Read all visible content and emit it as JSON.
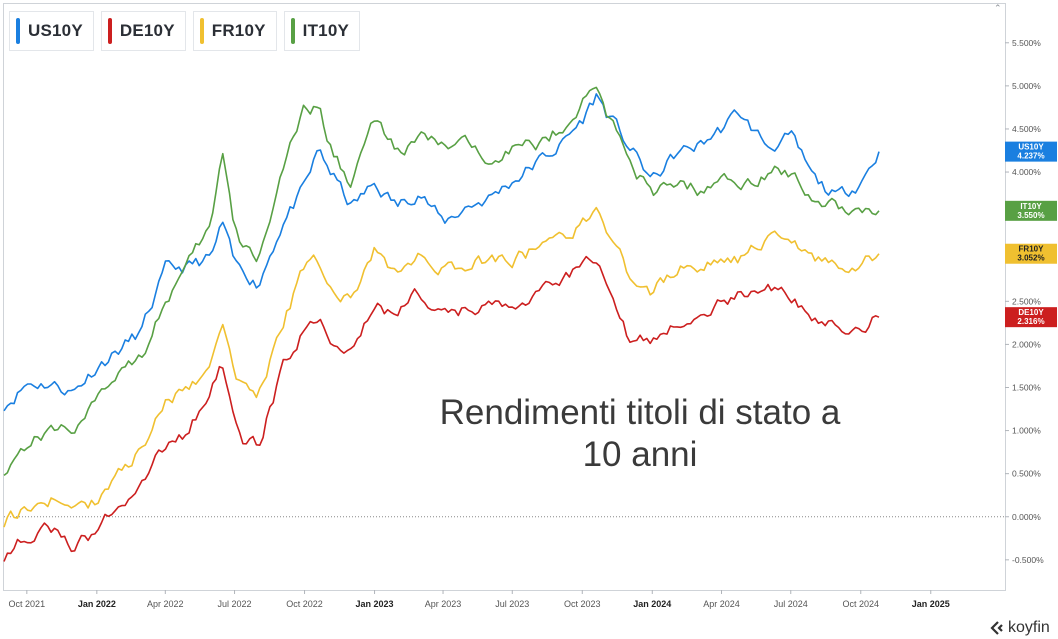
{
  "legend": {
    "items": [
      {
        "label": "US10Y",
        "color": "#1a7fe0"
      },
      {
        "label": "DE10Y",
        "color": "#cc1f1f"
      },
      {
        "label": "FR10Y",
        "color": "#f0c030"
      },
      {
        "label": "IT10Y",
        "color": "#58a044"
      }
    ]
  },
  "overlay_text": {
    "line1": "Rendimenti titoli di stato a",
    "line2": "10 anni"
  },
  "brand": {
    "name": "koyfin"
  },
  "chart_data": {
    "type": "line",
    "x_ticks": [
      "Oct 2021",
      "Jan 2022",
      "Apr 2022",
      "Jul 2022",
      "Oct 2022",
      "Jan 2023",
      "Apr 2023",
      "Jul 2023",
      "Oct 2023",
      "Jan 2024",
      "Apr 2024",
      "Jul 2024",
      "Oct 2024",
      "Jan 2025"
    ],
    "x_ticks_bold": [
      "Jan 2022",
      "Jan 2023",
      "Jan 2024",
      "Jan 2025"
    ],
    "y_ticks": [
      "-0.500%",
      "0.000%",
      "0.500%",
      "1.000%",
      "1.500%",
      "2.000%",
      "2.500%",
      "3.000%",
      "3.500%",
      "4.000%",
      "4.500%",
      "5.000%",
      "5.500%"
    ],
    "ylim": [
      -0.85,
      5.95
    ],
    "xlim": [
      "2021-09-01",
      "2025-02-15"
    ],
    "zero_line": "dotted",
    "x": [
      "2021-09-01",
      "2021-10-01",
      "2021-11-01",
      "2021-12-01",
      "2022-01-01",
      "2022-02-01",
      "2022-03-01",
      "2022-04-01",
      "2022-05-01",
      "2022-06-01",
      "2022-06-15",
      "2022-07-01",
      "2022-07-15",
      "2022-08-01",
      "2022-09-01",
      "2022-10-01",
      "2022-10-20",
      "2022-11-01",
      "2022-12-01",
      "2023-01-01",
      "2023-02-01",
      "2023-03-01",
      "2023-04-01",
      "2023-05-01",
      "2023-06-01",
      "2023-07-01",
      "2023-08-01",
      "2023-09-01",
      "2023-10-01",
      "2023-10-20",
      "2023-11-01",
      "2023-12-01",
      "2024-01-01",
      "2024-02-01",
      "2024-03-01",
      "2024-04-01",
      "2024-04-25",
      "2024-05-01",
      "2024-06-01",
      "2024-07-01",
      "2024-08-01",
      "2024-09-01",
      "2024-10-01",
      "2024-10-25"
    ],
    "series": [
      {
        "name": "US10Y",
        "color": "#1a7fe0",
        "last_value": 4.237,
        "last_label": "4.237%",
        "values": [
          1.3,
          1.55,
          1.55,
          1.45,
          1.75,
          1.95,
          2.15,
          2.85,
          2.9,
          3.0,
          3.4,
          2.9,
          2.85,
          2.7,
          3.4,
          3.8,
          4.25,
          4.05,
          3.6,
          3.85,
          3.6,
          3.8,
          3.4,
          3.6,
          3.7,
          3.9,
          4.1,
          4.3,
          4.6,
          4.9,
          4.7,
          4.3,
          3.9,
          4.2,
          4.3,
          4.5,
          4.7,
          4.6,
          4.3,
          4.4,
          3.9,
          3.7,
          3.9,
          4.237
        ]
      },
      {
        "name": "IT10Y",
        "color": "#58a044",
        "last_value": 3.55,
        "last_label": "3.550%",
        "values": [
          0.55,
          0.85,
          1.0,
          1.05,
          1.3,
          1.75,
          1.9,
          2.5,
          2.9,
          3.4,
          4.25,
          3.3,
          3.1,
          3.0,
          4.0,
          4.7,
          4.75,
          4.3,
          3.9,
          4.6,
          4.2,
          4.4,
          4.3,
          4.3,
          4.2,
          4.3,
          4.3,
          4.5,
          4.8,
          5.0,
          4.7,
          4.2,
          3.7,
          3.9,
          3.8,
          3.9,
          3.9,
          3.9,
          4.0,
          4.0,
          3.7,
          3.6,
          3.6,
          3.55
        ]
      },
      {
        "name": "FR10Y",
        "color": "#f0c030",
        "last_value": 3.052,
        "last_label": "3.052%",
        "values": [
          -0.05,
          0.1,
          0.2,
          0.05,
          0.2,
          0.5,
          0.8,
          1.3,
          1.5,
          1.8,
          2.3,
          1.7,
          1.5,
          1.4,
          2.2,
          2.9,
          2.95,
          2.7,
          2.5,
          3.1,
          2.8,
          3.0,
          2.9,
          2.9,
          3.0,
          3.0,
          3.1,
          3.2,
          3.4,
          3.5,
          3.3,
          2.8,
          2.6,
          2.9,
          2.9,
          3.0,
          3.0,
          3.0,
          3.2,
          3.2,
          3.0,
          2.9,
          2.95,
          3.052
        ]
      },
      {
        "name": "DE10Y",
        "color": "#cc1f1f",
        "last_value": 2.316,
        "last_label": "2.316%",
        "values": [
          -0.45,
          -0.2,
          -0.15,
          -0.35,
          -0.2,
          0.2,
          0.4,
          0.8,
          1.0,
          1.5,
          1.75,
          1.2,
          0.9,
          0.8,
          1.7,
          2.2,
          2.4,
          2.1,
          1.9,
          2.4,
          2.4,
          2.6,
          2.3,
          2.4,
          2.4,
          2.5,
          2.6,
          2.7,
          2.9,
          2.95,
          2.7,
          2.1,
          2.0,
          2.3,
          2.4,
          2.5,
          2.55,
          2.5,
          2.6,
          2.6,
          2.3,
          2.2,
          2.2,
          2.316
        ]
      }
    ]
  }
}
